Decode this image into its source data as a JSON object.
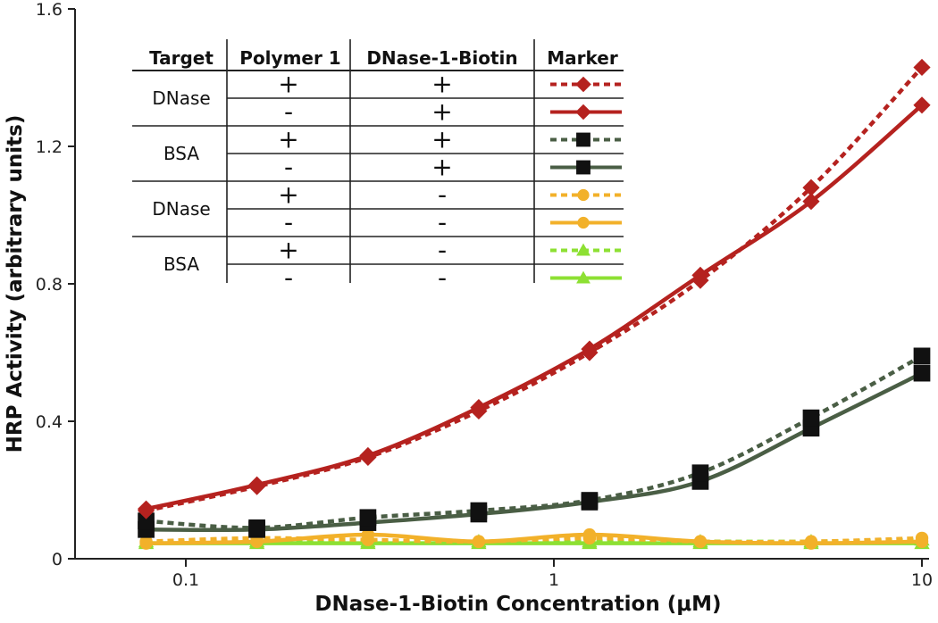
{
  "chart_data": {
    "type": "line",
    "xlabel": "DNase-1-Biotin Concentration (μM)",
    "ylabel": "HRP Activity (arbitrary units)",
    "xscale": "log",
    "xlim": [
      0.05,
      10
    ],
    "ylim": [
      0,
      1.6
    ],
    "x_ticks": [
      {
        "value": 0.1,
        "label": "0.1"
      },
      {
        "value": 1,
        "label": "1"
      },
      {
        "value": 10,
        "label": "10"
      }
    ],
    "y_ticks": [
      {
        "value": 0,
        "label": "0"
      },
      {
        "value": 0.4,
        "label": "0.4"
      },
      {
        "value": 0.8,
        "label": "0.8"
      },
      {
        "value": 1.2,
        "label": "1.2"
      },
      {
        "value": 1.6,
        "label": "1.6"
      }
    ],
    "x": [
      0.078,
      0.156,
      0.3125,
      0.625,
      1.25,
      2.5,
      5,
      10
    ],
    "series": [
      {
        "color": "#b5221f",
        "dashed": true,
        "marker": "diamond",
        "values": [
          0.14,
          0.21,
          0.295,
          0.43,
          0.6,
          0.81,
          1.08,
          1.43
        ]
      },
      {
        "color": "#b5221f",
        "dashed": false,
        "marker": "diamond",
        "values": [
          0.145,
          0.215,
          0.3,
          0.44,
          0.61,
          0.825,
          1.04,
          1.32
        ]
      },
      {
        "color": "#4a5e45",
        "dashed": true,
        "marker": "square",
        "values": [
          0.11,
          0.09,
          0.12,
          0.14,
          0.17,
          0.25,
          0.41,
          0.59
        ]
      },
      {
        "color": "#4a5e45",
        "dashed": false,
        "marker": "square",
        "values": [
          0.085,
          0.085,
          0.105,
          0.13,
          0.165,
          0.225,
          0.38,
          0.54
        ]
      },
      {
        "color": "#f2b12a",
        "dashed": true,
        "marker": "circle",
        "values": [
          0.05,
          0.06,
          0.055,
          0.05,
          0.06,
          0.05,
          0.05,
          0.06
        ]
      },
      {
        "color": "#f2b12a",
        "dashed": false,
        "marker": "circle",
        "values": [
          0.045,
          0.05,
          0.07,
          0.05,
          0.07,
          0.05,
          0.045,
          0.05
        ]
      },
      {
        "color": "#8de033",
        "dashed": true,
        "marker": "triangle",
        "values": [
          0.05,
          0.05,
          0.05,
          0.05,
          0.05,
          0.05,
          0.05,
          0.055
        ]
      },
      {
        "color": "#8de033",
        "dashed": false,
        "marker": "triangle",
        "values": [
          0.045,
          0.045,
          0.045,
          0.045,
          0.045,
          0.045,
          0.045,
          0.045
        ]
      }
    ],
    "grid": false,
    "legend_position": "top-left",
    "legend_table": {
      "headers": [
        "Target",
        "Polymer 1",
        "DNase-1-Biotin",
        "Marker"
      ],
      "rows": [
        {
          "target": "DNase",
          "polymer": "+",
          "biotin": "+"
        },
        {
          "target": "",
          "polymer": "-",
          "biotin": "+"
        },
        {
          "target": "BSA",
          "polymer": "+",
          "biotin": "+"
        },
        {
          "target": "",
          "polymer": "-",
          "biotin": "+"
        },
        {
          "target": "DNase",
          "polymer": "+",
          "biotin": "-"
        },
        {
          "target": "",
          "polymer": "-",
          "biotin": "-"
        },
        {
          "target": "BSA",
          "polymer": "+",
          "biotin": "-"
        },
        {
          "target": "",
          "polymer": "-",
          "biotin": "-"
        }
      ]
    }
  }
}
